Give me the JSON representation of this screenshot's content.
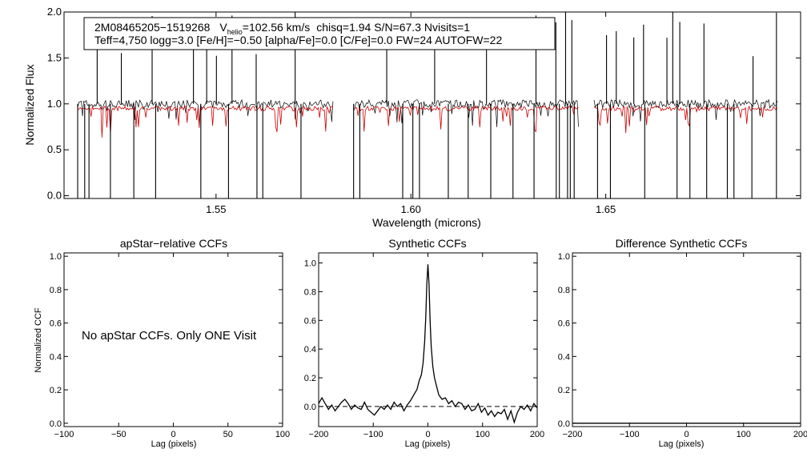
{
  "chart_data": [
    {
      "type": "line",
      "panel": "spectrum",
      "xlabel": "Wavelength (microns)",
      "ylabel": "Normalized Flux",
      "xlim": [
        1.511,
        1.7
      ],
      "ylim": [
        -0.03,
        2.0
      ],
      "xticks": [
        1.55,
        1.6,
        1.65
      ],
      "xtick_labels": [
        "1.55",
        "1.60",
        "1.65"
      ],
      "yticks": [
        0.0,
        0.5,
        1.0,
        1.5,
        2.0
      ],
      "ytick_labels": [
        "0.0",
        "0.5",
        "1.0",
        "1.5",
        "2.0"
      ],
      "legend": {
        "star_id": "2M08465205−1519268",
        "v_prefix": "V",
        "v_sub": "helio",
        "v_value": "=102.56 km/s",
        "rest_line1": "chisq=1.94  S/N=67.3  Nvisits=1",
        "line2": "Teff=4,750 logg=3.0 [Fe/H]=−0.50 [alpha/Fe]=0.0 [C/Fe]=0.0 FW=24 AUTOFW=22"
      },
      "chips": [
        [
          1.5145,
          1.58
        ],
        [
          1.5855,
          1.643
        ],
        [
          1.647,
          1.694
        ]
      ],
      "continuum": 1.0,
      "model_level": 0.95,
      "series": [
        {
          "name": "observed spectrum",
          "color": "#000000"
        },
        {
          "name": "best-fit synthetic spectrum",
          "color": "#cc0000"
        }
      ],
      "spikes_up": [
        1.5195,
        1.5257,
        1.5336,
        1.5442,
        1.5476,
        1.5501,
        1.5541,
        1.5603,
        1.5703,
        1.5938,
        1.6061,
        1.6194,
        1.6321,
        1.6372,
        1.6397,
        1.6413,
        1.6502,
        1.6527,
        1.6572,
        1.6597,
        1.6657,
        1.6672,
        1.669,
        1.6752,
        1.6878,
        1.6938
      ],
      "spikes_down": [
        1.5145,
        1.5163,
        1.5174,
        1.5229,
        1.5289,
        1.5345,
        1.5461,
        1.5532,
        1.5605,
        1.562,
        1.5718,
        1.5853,
        1.5869,
        1.5979,
        1.6005,
        1.6022,
        1.6096,
        1.6147,
        1.6205,
        1.6262,
        1.6316,
        1.6373,
        1.6381,
        1.6402,
        1.6409,
        1.6419,
        1.6479,
        1.6512,
        1.66,
        1.6683,
        1.6716,
        1.6759,
        1.6812,
        1.6829,
        1.6875,
        1.6938
      ]
    },
    {
      "type": "line",
      "panel": "apstar",
      "title": "apStar−relative CCFs",
      "xlabel": "Lag (pixels)",
      "ylabel": "Normalized CCF",
      "xlim": [
        -100,
        100
      ],
      "ylim": [
        -0.02,
        1.02
      ],
      "xticks": [
        -100,
        -50,
        0,
        50,
        100
      ],
      "xtick_labels": [
        "−100",
        "−50",
        "0",
        "50",
        "100"
      ],
      "yticks": [
        0.0,
        0.2,
        0.4,
        0.6,
        0.8,
        1.0
      ],
      "ytick_labels": [
        "0.0",
        "0.2",
        "0.4",
        "0.6",
        "0.8",
        "1.0"
      ],
      "annotation": "No apStar CCFs.  Only ONE Visit",
      "series": []
    },
    {
      "type": "line",
      "panel": "synthetic",
      "title": "Synthetic CCFs",
      "xlabel": "Lag (pixels)",
      "xlim": [
        -200,
        200
      ],
      "ylim": [
        -0.14,
        1.07
      ],
      "xticks": [
        -200,
        -100,
        0,
        100,
        200
      ],
      "xtick_labels": [
        "−200",
        "−100",
        "0",
        "100",
        "200"
      ],
      "yticks": [
        0.0,
        0.2,
        0.4,
        0.6,
        0.8,
        1.0
      ],
      "ytick_labels": [
        "0.0",
        "0.2",
        "0.4",
        "0.6",
        "0.8",
        "1.0"
      ],
      "zero_line": 0.0,
      "series": [
        {
          "name": "CCF",
          "x": [
            -200,
            -194,
            -188,
            -182,
            -176,
            -170,
            -164,
            -158,
            -152,
            -146,
            -140,
            -134,
            -128,
            -122,
            -116,
            -110,
            -104,
            -98,
            -92,
            -86,
            -80,
            -74,
            -68,
            -62,
            -56,
            -50,
            -44,
            -38,
            -32,
            -26,
            -20,
            -16,
            -12,
            -9,
            -6,
            -4,
            -2,
            0,
            2,
            4,
            6,
            9,
            12,
            16,
            20,
            26,
            32,
            38,
            44,
            50,
            56,
            62,
            68,
            74,
            80,
            86,
            92,
            98,
            104,
            110,
            116,
            122,
            128,
            134,
            140,
            146,
            152,
            158,
            164,
            170,
            176,
            182,
            188,
            194,
            200
          ],
          "values": [
            0.02,
            0.06,
            0.02,
            -0.02,
            0.01,
            -0.03,
            0.0,
            0.03,
            0.05,
            0.02,
            -0.02,
            0.01,
            -0.01,
            -0.02,
            0.03,
            -0.02,
            -0.04,
            -0.06,
            -0.03,
            0.0,
            -0.02,
            0.01,
            -0.02,
            0.03,
            0.0,
            0.02,
            -0.03,
            0.01,
            0.04,
            0.08,
            0.12,
            0.18,
            0.22,
            0.3,
            0.45,
            0.62,
            0.85,
            0.99,
            0.85,
            0.6,
            0.42,
            0.28,
            0.2,
            0.14,
            0.08,
            0.05,
            0.06,
            0.02,
            0.04,
            0.0,
            0.03,
            0.02,
            -0.02,
            0.01,
            -0.03,
            -0.02,
            0.02,
            -0.04,
            -0.01,
            -0.06,
            -0.03,
            -0.07,
            -0.04,
            -0.05,
            -0.02,
            -0.09,
            -0.03,
            -0.11,
            -0.04,
            0.0,
            -0.02,
            0.01,
            -0.03,
            0.02,
            -0.01
          ]
        }
      ]
    },
    {
      "type": "line",
      "panel": "difference",
      "title": "Difference Synthetic CCFs",
      "xlabel": "Lag (pixels)",
      "xlim": [
        -200,
        200
      ],
      "ylim": [
        -0.02,
        1.02
      ],
      "xticks": [
        -200,
        -100,
        0,
        100,
        200
      ],
      "xtick_labels": [
        "−200",
        "−100",
        "0",
        "100",
        "200"
      ],
      "yticks": [
        0.0,
        0.2,
        0.4,
        0.6,
        0.8,
        1.0
      ],
      "ytick_labels": [
        "0.0",
        "0.2",
        "0.4",
        "0.6",
        "0.8",
        "1.0"
      ],
      "series": [
        {
          "name": "difference CCF",
          "x": [
            -200,
            200
          ],
          "values": [
            0.0,
            0.0
          ]
        }
      ]
    }
  ]
}
